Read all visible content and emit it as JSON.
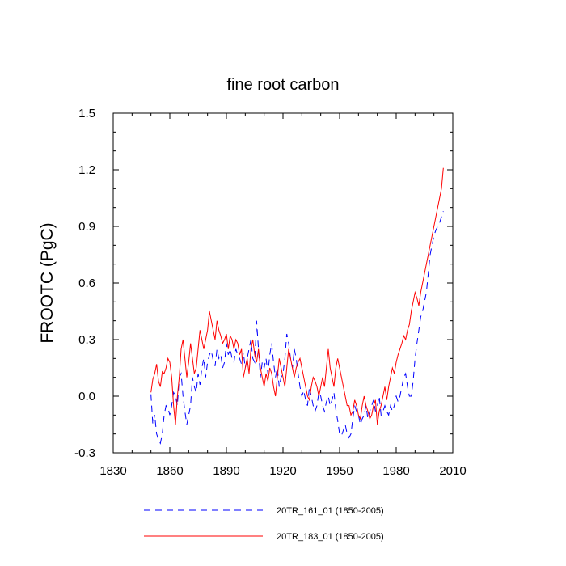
{
  "chart_data": {
    "type": "line",
    "title": "fine root carbon",
    "xlabel": "",
    "ylabel": "FROOTC  (PgC)",
    "xlim": [
      1830,
      2010
    ],
    "ylim": [
      -0.3,
      1.5
    ],
    "xticks": [
      1830,
      1860,
      1890,
      1920,
      1950,
      1980,
      2010
    ],
    "xtick_labels": [
      "1830",
      "1860",
      "1890",
      "1920",
      "1950",
      "1980",
      "2010"
    ],
    "yticks": [
      -0.3,
      0.0,
      0.3,
      0.6,
      0.9,
      1.2,
      1.5
    ],
    "ytick_labels": [
      "-0.3",
      "0.0",
      "0.3",
      "0.6",
      "0.9",
      "1.2",
      "1.5"
    ],
    "grid": false,
    "legend_position": "bottom",
    "series": [
      {
        "name": "20TR_161_01 (1850-2005)",
        "color": "#0000ff",
        "dash": "dashed",
        "x": [
          1850,
          1851,
          1852,
          1853,
          1854,
          1855,
          1856,
          1857,
          1858,
          1859,
          1860,
          1861,
          1862,
          1863,
          1864,
          1865,
          1866,
          1867,
          1868,
          1869,
          1870,
          1871,
          1872,
          1873,
          1874,
          1875,
          1876,
          1877,
          1878,
          1879,
          1880,
          1881,
          1882,
          1883,
          1884,
          1885,
          1886,
          1887,
          1888,
          1889,
          1890,
          1891,
          1892,
          1893,
          1894,
          1895,
          1896,
          1897,
          1898,
          1899,
          1900,
          1901,
          1902,
          1903,
          1904,
          1905,
          1906,
          1907,
          1908,
          1909,
          1910,
          1911,
          1912,
          1913,
          1914,
          1915,
          1916,
          1917,
          1918,
          1919,
          1920,
          1921,
          1922,
          1923,
          1924,
          1925,
          1926,
          1927,
          1928,
          1929,
          1930,
          1931,
          1932,
          1933,
          1934,
          1935,
          1936,
          1937,
          1938,
          1939,
          1940,
          1941,
          1942,
          1943,
          1944,
          1945,
          1946,
          1947,
          1948,
          1949,
          1950,
          1951,
          1952,
          1953,
          1954,
          1955,
          1956,
          1957,
          1958,
          1959,
          1960,
          1961,
          1962,
          1963,
          1964,
          1965,
          1966,
          1967,
          1968,
          1969,
          1970,
          1971,
          1972,
          1973,
          1974,
          1975,
          1976,
          1977,
          1978,
          1979,
          1980,
          1981,
          1982,
          1983,
          1984,
          1985,
          1986,
          1987,
          1988,
          1989,
          1990,
          1991,
          1992,
          1993,
          1994,
          1995,
          1996,
          1997,
          1998,
          1999,
          2000,
          2001,
          2002,
          2003,
          2004,
          2005
        ],
        "values": [
          0.01,
          -0.15,
          -0.1,
          -0.2,
          -0.23,
          -0.25,
          -0.2,
          -0.1,
          -0.05,
          -0.06,
          -0.1,
          -0.05,
          0.02,
          0.0,
          -0.05,
          0.1,
          0.12,
          0.0,
          -0.08,
          -0.15,
          -0.1,
          -0.05,
          0.1,
          0.05,
          0.02,
          0.12,
          0.06,
          0.15,
          0.2,
          0.1,
          0.18,
          0.22,
          0.24,
          0.19,
          0.16,
          0.25,
          0.2,
          0.22,
          0.15,
          0.18,
          0.28,
          0.22,
          0.25,
          0.2,
          0.18,
          0.25,
          0.22,
          0.2,
          0.17,
          0.23,
          0.15,
          0.2,
          0.25,
          0.3,
          0.2,
          0.18,
          0.4,
          0.25,
          0.1,
          0.18,
          0.15,
          0.2,
          0.12,
          0.22,
          0.28,
          0.18,
          0.1,
          0.15,
          0.05,
          0.1,
          0.12,
          0.2,
          0.33,
          0.28,
          0.2,
          0.15,
          0.25,
          0.2,
          0.12,
          0.05,
          0.0,
          0.03,
          -0.02,
          -0.05,
          0.05,
          0.0,
          -0.05,
          -0.08,
          -0.05,
          0.02,
          0.0,
          -0.05,
          -0.08,
          -0.03,
          0.0,
          -0.05,
          -0.02,
          0.02,
          -0.07,
          -0.13,
          -0.2,
          -0.21,
          -0.18,
          -0.15,
          -0.2,
          -0.22,
          -0.2,
          -0.12,
          -0.05,
          -0.08,
          -0.1,
          -0.15,
          -0.12,
          -0.1,
          -0.05,
          -0.12,
          -0.08,
          -0.05,
          -0.02,
          -0.08,
          -0.05,
          0.0,
          -0.1,
          -0.08,
          -0.05,
          -0.08,
          -0.1,
          -0.05,
          -0.08,
          -0.05,
          0.0,
          -0.03,
          0.0,
          0.05,
          0.1,
          0.12,
          0.05,
          0.0,
          0.0,
          0.08,
          0.2,
          0.28,
          0.35,
          0.42,
          0.45,
          0.5,
          0.55,
          0.65,
          0.75,
          0.8,
          0.85,
          0.88,
          0.9,
          0.92,
          0.95,
          0.98
        ]
      },
      {
        "name": "20TR_183_01 (1850-2005)",
        "color": "#ff0000",
        "dash": "solid",
        "x": [
          1850,
          1851,
          1852,
          1853,
          1854,
          1855,
          1856,
          1857,
          1858,
          1859,
          1860,
          1861,
          1862,
          1863,
          1864,
          1865,
          1866,
          1867,
          1868,
          1869,
          1870,
          1871,
          1872,
          1873,
          1874,
          1875,
          1876,
          1877,
          1878,
          1879,
          1880,
          1881,
          1882,
          1883,
          1884,
          1885,
          1886,
          1887,
          1888,
          1889,
          1890,
          1891,
          1892,
          1893,
          1894,
          1895,
          1896,
          1897,
          1898,
          1899,
          1900,
          1901,
          1902,
          1903,
          1904,
          1905,
          1906,
          1907,
          1908,
          1909,
          1910,
          1911,
          1912,
          1913,
          1914,
          1915,
          1916,
          1917,
          1918,
          1919,
          1920,
          1921,
          1922,
          1923,
          1924,
          1925,
          1926,
          1927,
          1928,
          1929,
          1930,
          1931,
          1932,
          1933,
          1934,
          1935,
          1936,
          1937,
          1938,
          1939,
          1940,
          1941,
          1942,
          1943,
          1944,
          1945,
          1946,
          1947,
          1948,
          1949,
          1950,
          1951,
          1952,
          1953,
          1954,
          1955,
          1956,
          1957,
          1958,
          1959,
          1960,
          1961,
          1962,
          1963,
          1964,
          1965,
          1966,
          1967,
          1968,
          1969,
          1970,
          1971,
          1972,
          1973,
          1974,
          1975,
          1976,
          1977,
          1978,
          1979,
          1980,
          1981,
          1982,
          1983,
          1984,
          1985,
          1986,
          1987,
          1988,
          1989,
          1990,
          1991,
          1992,
          1993,
          1994,
          1995,
          1996,
          1997,
          1998,
          1999,
          2000,
          2001,
          2002,
          2003,
          2004,
          2005
        ],
        "values": [
          0.02,
          0.09,
          0.12,
          0.17,
          0.08,
          0.05,
          0.13,
          0.12,
          0.15,
          0.2,
          0.18,
          0.1,
          -0.05,
          -0.15,
          0.0,
          0.1,
          0.25,
          0.3,
          0.2,
          0.1,
          0.18,
          0.28,
          0.2,
          0.12,
          0.15,
          0.25,
          0.35,
          0.3,
          0.25,
          0.3,
          0.35,
          0.45,
          0.4,
          0.35,
          0.3,
          0.4,
          0.35,
          0.32,
          0.28,
          0.3,
          0.33,
          0.25,
          0.32,
          0.3,
          0.25,
          0.3,
          0.28,
          0.22,
          0.25,
          0.1,
          0.15,
          0.2,
          0.12,
          0.25,
          0.3,
          0.22,
          0.18,
          0.25,
          0.15,
          0.1,
          0.05,
          0.12,
          0.08,
          0.15,
          0.12,
          0.05,
          0.0,
          0.1,
          0.2,
          0.15,
          0.1,
          0.05,
          0.15,
          0.25,
          0.2,
          0.15,
          0.1,
          0.15,
          0.18,
          0.2,
          0.15,
          0.1,
          0.05,
          0.0,
          -0.02,
          0.05,
          0.1,
          0.08,
          0.05,
          0.0,
          0.05,
          0.1,
          0.05,
          0.15,
          0.25,
          0.15,
          0.1,
          0.05,
          0.15,
          0.2,
          0.15,
          0.1,
          0.05,
          0.0,
          -0.05,
          -0.05,
          -0.1,
          -0.08,
          -0.02,
          -0.05,
          -0.1,
          -0.12,
          -0.05,
          0.0,
          -0.05,
          -0.08,
          -0.12,
          -0.1,
          -0.05,
          -0.02,
          -0.15,
          -0.08,
          -0.05,
          0.0,
          0.05,
          -0.02,
          0.05,
          0.1,
          0.15,
          0.12,
          0.18,
          0.22,
          0.25,
          0.28,
          0.32,
          0.3,
          0.35,
          0.38,
          0.45,
          0.5,
          0.55,
          0.52,
          0.48,
          0.55,
          0.6,
          0.65,
          0.7,
          0.75,
          0.8,
          0.85,
          0.9,
          0.95,
          1.0,
          1.05,
          1.1,
          1.21
        ]
      }
    ]
  }
}
